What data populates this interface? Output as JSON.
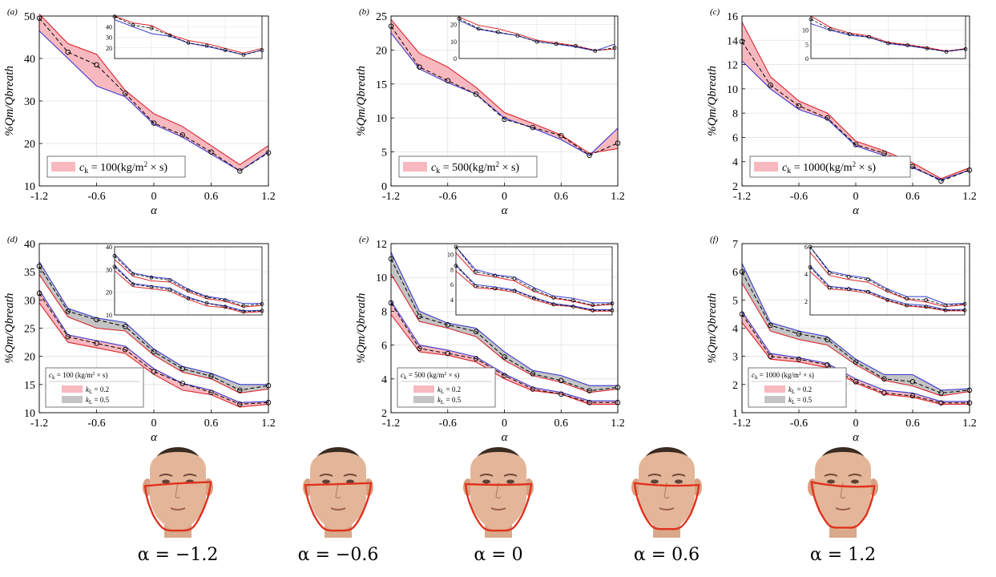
{
  "colors": {
    "red": "#d9252b",
    "redFill": "#f7b9bf",
    "blue": "#3a3ad0",
    "grayFill": "#c4c4c4",
    "grid": "#e2e2e2"
  },
  "x_values": [
    -1.2,
    -0.9,
    -0.6,
    -0.3,
    0,
    0.3,
    0.6,
    0.9,
    1.2
  ],
  "x_ticks": [
    "-1.2",
    "-0.6",
    "0",
    "0.6",
    "1.2"
  ],
  "xlabel": "α",
  "ylabel": "%Qm/Qbreath",
  "chart_data": [
    {
      "id": "a",
      "type": "line",
      "panel_label": "(a)",
      "legend": [
        "c",
        "k",
        " = 100(kg/m",
        " × s)"
      ],
      "ylim": [
        10,
        50
      ],
      "yticks": [
        10,
        20,
        30,
        40,
        50
      ],
      "inset_ylim": [
        10,
        50
      ],
      "inset_yticks": [
        20,
        30,
        40
      ],
      "bands": [
        {
          "fill": "red",
          "red": [
            50.5,
            43.5,
            41,
            32.5,
            27,
            24,
            19.5,
            15,
            19.5
          ],
          "blue": [
            46.5,
            40,
            33.5,
            31,
            24.5,
            21.5,
            17.5,
            13.5,
            18
          ],
          "values": [
            49.5,
            41.5,
            38.5,
            31.8,
            24.8,
            22,
            18,
            13.5,
            17.8
          ]
        }
      ]
    },
    {
      "id": "b",
      "type": "line",
      "panel_label": "(b)",
      "legend": [
        "c",
        "k",
        " = 500(kg/m",
        " × s)"
      ],
      "ylim": [
        0,
        25
      ],
      "yticks": [
        0,
        5,
        10,
        15,
        20,
        25
      ],
      "inset_ylim": [
        0,
        25
      ],
      "inset_yticks": [
        0,
        10,
        20
      ],
      "bands": [
        {
          "fill": "red",
          "red": [
            24.5,
            19.5,
            17.5,
            14.5,
            10.8,
            9.2,
            7.5,
            4.8,
            5.5
          ],
          "blue": [
            22.5,
            17.2,
            15.2,
            13.5,
            10,
            8.5,
            6.8,
            4.5,
            8.5
          ],
          "values": [
            23.5,
            17.5,
            15.5,
            13.5,
            9.8,
            8.6,
            7.4,
            4.5,
            6.3
          ]
        }
      ]
    },
    {
      "id": "c",
      "type": "line",
      "panel_label": "(c)",
      "legend": [
        "c",
        "k",
        " = 1000(kg/m",
        " × s)"
      ],
      "ylim": [
        2,
        16
      ],
      "yticks": [
        2,
        4,
        6,
        8,
        10,
        12,
        14,
        16
      ],
      "inset_ylim": [
        0,
        15
      ],
      "inset_yticks": [
        0,
        5,
        10
      ],
      "bands": [
        {
          "fill": "red",
          "red": [
            15.5,
            11,
            9,
            8,
            5.7,
            4.9,
            3.9,
            2.6,
            3.5
          ],
          "blue": [
            12.3,
            10,
            8.3,
            7.5,
            5.3,
            4.5,
            3.5,
            2.5,
            3.3
          ],
          "values": [
            13.9,
            10.3,
            8.6,
            7.6,
            5.4,
            4.7,
            3.6,
            2.4,
            3.3
          ]
        }
      ]
    },
    {
      "id": "d",
      "type": "line",
      "panel_label": "(d)",
      "legend": [
        "c",
        "k",
        " = 100 (kg/m",
        " × s)"
      ],
      "legend_kl": [
        "k",
        "L",
        " = 0.2",
        "k",
        "L",
        " = 0.5"
      ],
      "ylim": [
        10,
        40
      ],
      "yticks": [
        10,
        15,
        20,
        25,
        30,
        35,
        40
      ],
      "inset_ylim": [
        10,
        40
      ],
      "inset_yticks": [
        10,
        20,
        30,
        40
      ],
      "bands": [
        {
          "fill": "gray",
          "red": [
            34.5,
            27,
            25,
            24.5,
            20.2,
            17.2,
            16,
            13.5,
            14.2
          ],
          "blue": [
            36.8,
            28.5,
            26.8,
            26,
            21.3,
            18.2,
            17,
            15,
            15
          ],
          "values": [
            36,
            28,
            26.5,
            25.3,
            20.8,
            17.8,
            16.5,
            14,
            14.8
          ]
        },
        {
          "fill": "red",
          "red": [
            29.5,
            22.5,
            21.5,
            20.5,
            16.8,
            14,
            13.2,
            11,
            11.5
          ],
          "blue": [
            31.8,
            23.8,
            22.8,
            21.8,
            17.8,
            15.2,
            14,
            11.8,
            12
          ],
          "values": [
            31.2,
            23.5,
            22.3,
            21.2,
            17.3,
            15.2,
            13.6,
            11.5,
            11.8
          ]
        }
      ]
    },
    {
      "id": "e",
      "type": "line",
      "panel_label": "(e)",
      "legend": [
        "c",
        "k",
        " = 500 (kg/m",
        " × s)"
      ],
      "legend_kl": [
        "k",
        "L",
        " = 0.2",
        "k",
        "L",
        " = 0.5"
      ],
      "ylim": [
        2,
        12
      ],
      "yticks": [
        2,
        4,
        6,
        8,
        10,
        12
      ],
      "inset_ylim": [
        2,
        11
      ],
      "inset_yticks": [
        4,
        6,
        8,
        10
      ],
      "bands": [
        {
          "fill": "gray",
          "red": [
            10.2,
            7.4,
            7,
            6.5,
            5.1,
            4.2,
            3.8,
            3.2,
            3.4
          ],
          "blue": [
            11.5,
            8,
            7.3,
            7,
            5.6,
            4.5,
            4.2,
            3.6,
            3.6
          ],
          "values": [
            11.1,
            7.7,
            7.2,
            6.8,
            5.3,
            4.3,
            3.9,
            3.3,
            3.5
          ]
        },
        {
          "fill": "red",
          "red": [
            7.8,
            5.6,
            5.4,
            5,
            4,
            3.3,
            3.1,
            2.5,
            2.5
          ],
          "blue": [
            8.6,
            6,
            5.7,
            5.3,
            4.3,
            3.5,
            3.2,
            2.7,
            2.7
          ],
          "values": [
            8.5,
            5.8,
            5.5,
            5.2,
            4.2,
            3.4,
            3.1,
            2.6,
            2.6
          ]
        }
      ]
    },
    {
      "id": "f",
      "type": "line",
      "panel_label": "(f)",
      "legend": [
        "c",
        "k",
        " = 1000 (kg/m",
        " × s)"
      ],
      "legend_kl": [
        "k",
        "L",
        " = 0.2",
        "k",
        "L",
        " = 0.5"
      ],
      "ylim": [
        1,
        7
      ],
      "yticks": [
        1,
        2,
        3,
        4,
        5,
        6,
        7
      ],
      "inset_ylim": [
        1,
        6
      ],
      "inset_yticks": [
        2,
        4,
        6
      ],
      "bands": [
        {
          "fill": "gray",
          "red": [
            5.6,
            3.9,
            3.6,
            3.4,
            2.7,
            2.15,
            1.95,
            1.6,
            1.75
          ],
          "blue": [
            6.3,
            4.2,
            3.9,
            3.7,
            2.9,
            2.35,
            2.35,
            1.8,
            1.85
          ],
          "values": [
            6,
            4.1,
            3.8,
            3.6,
            2.8,
            2.2,
            2.1,
            1.7,
            1.8
          ]
        },
        {
          "fill": "red",
          "red": [
            4.2,
            2.9,
            2.8,
            2.6,
            2.05,
            1.65,
            1.55,
            1.3,
            1.3
          ],
          "blue": [
            4.6,
            3.1,
            2.95,
            2.75,
            2.2,
            1.8,
            1.7,
            1.4,
            1.4
          ],
          "values": [
            4.5,
            3,
            2.9,
            2.7,
            2.1,
            1.7,
            1.6,
            1.35,
            1.35
          ]
        }
      ]
    }
  ],
  "faces": [
    {
      "label": "α = −1.2",
      "alpha": -1.2
    },
    {
      "label": "α = −0.6",
      "alpha": -0.6
    },
    {
      "label": "α = 0",
      "alpha": 0
    },
    {
      "label": "α = 0.6",
      "alpha": 0.6
    },
    {
      "label": "α = 1.2",
      "alpha": 1.2
    }
  ]
}
